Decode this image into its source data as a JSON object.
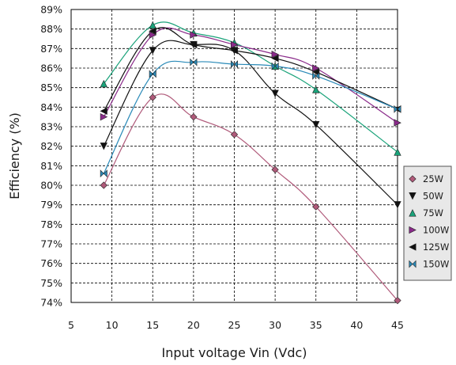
{
  "chart_data": {
    "type": "line",
    "title": "",
    "xlabel": "Input voltage Vin (Vdc)",
    "ylabel": "Efficiency (%)",
    "xlim": [
      5,
      45
    ],
    "ylim": [
      74,
      89
    ],
    "xticks": [
      "5",
      "10",
      "15",
      "20",
      "25",
      "30",
      "35",
      "40",
      "45"
    ],
    "yticks": [
      "74%",
      "75%",
      "76%",
      "77%",
      "78%",
      "79%",
      "80%",
      "81%",
      "82%",
      "83%",
      "84%",
      "85%",
      "86%",
      "87%",
      "88%",
      "89%"
    ],
    "grid": "dashed",
    "legend_position": "right",
    "x": [
      9,
      15,
      20,
      25,
      30,
      35,
      45
    ],
    "series": [
      {
        "name": "25W",
        "color": "#b05a7a",
        "marker": "diamond",
        "values": [
          80.0,
          84.5,
          83.5,
          82.6,
          80.8,
          78.9,
          74.1
        ]
      },
      {
        "name": "50W",
        "color": "#111111",
        "marker": "triangle-down",
        "values": [
          82.0,
          86.9,
          87.2,
          86.9,
          84.7,
          83.1,
          79.0
        ]
      },
      {
        "name": "75W",
        "color": "#1aa37a",
        "marker": "triangle-up",
        "values": [
          85.2,
          88.2,
          87.8,
          87.3,
          86.1,
          84.9,
          81.7
        ]
      },
      {
        "name": "100W",
        "color": "#8a2a8a",
        "marker": "triangle-right",
        "values": [
          83.5,
          87.7,
          87.7,
          87.2,
          86.7,
          86.0,
          83.2
        ]
      },
      {
        "name": "125W",
        "color": "#111111",
        "marker": "triangle-left",
        "values": [
          83.8,
          87.9,
          87.2,
          86.9,
          86.5,
          85.8,
          83.9
        ]
      },
      {
        "name": "150W",
        "color": "#2a8ab8",
        "marker": "bowtie",
        "values": [
          80.6,
          85.7,
          86.3,
          86.2,
          86.1,
          85.6,
          83.9
        ]
      }
    ]
  }
}
